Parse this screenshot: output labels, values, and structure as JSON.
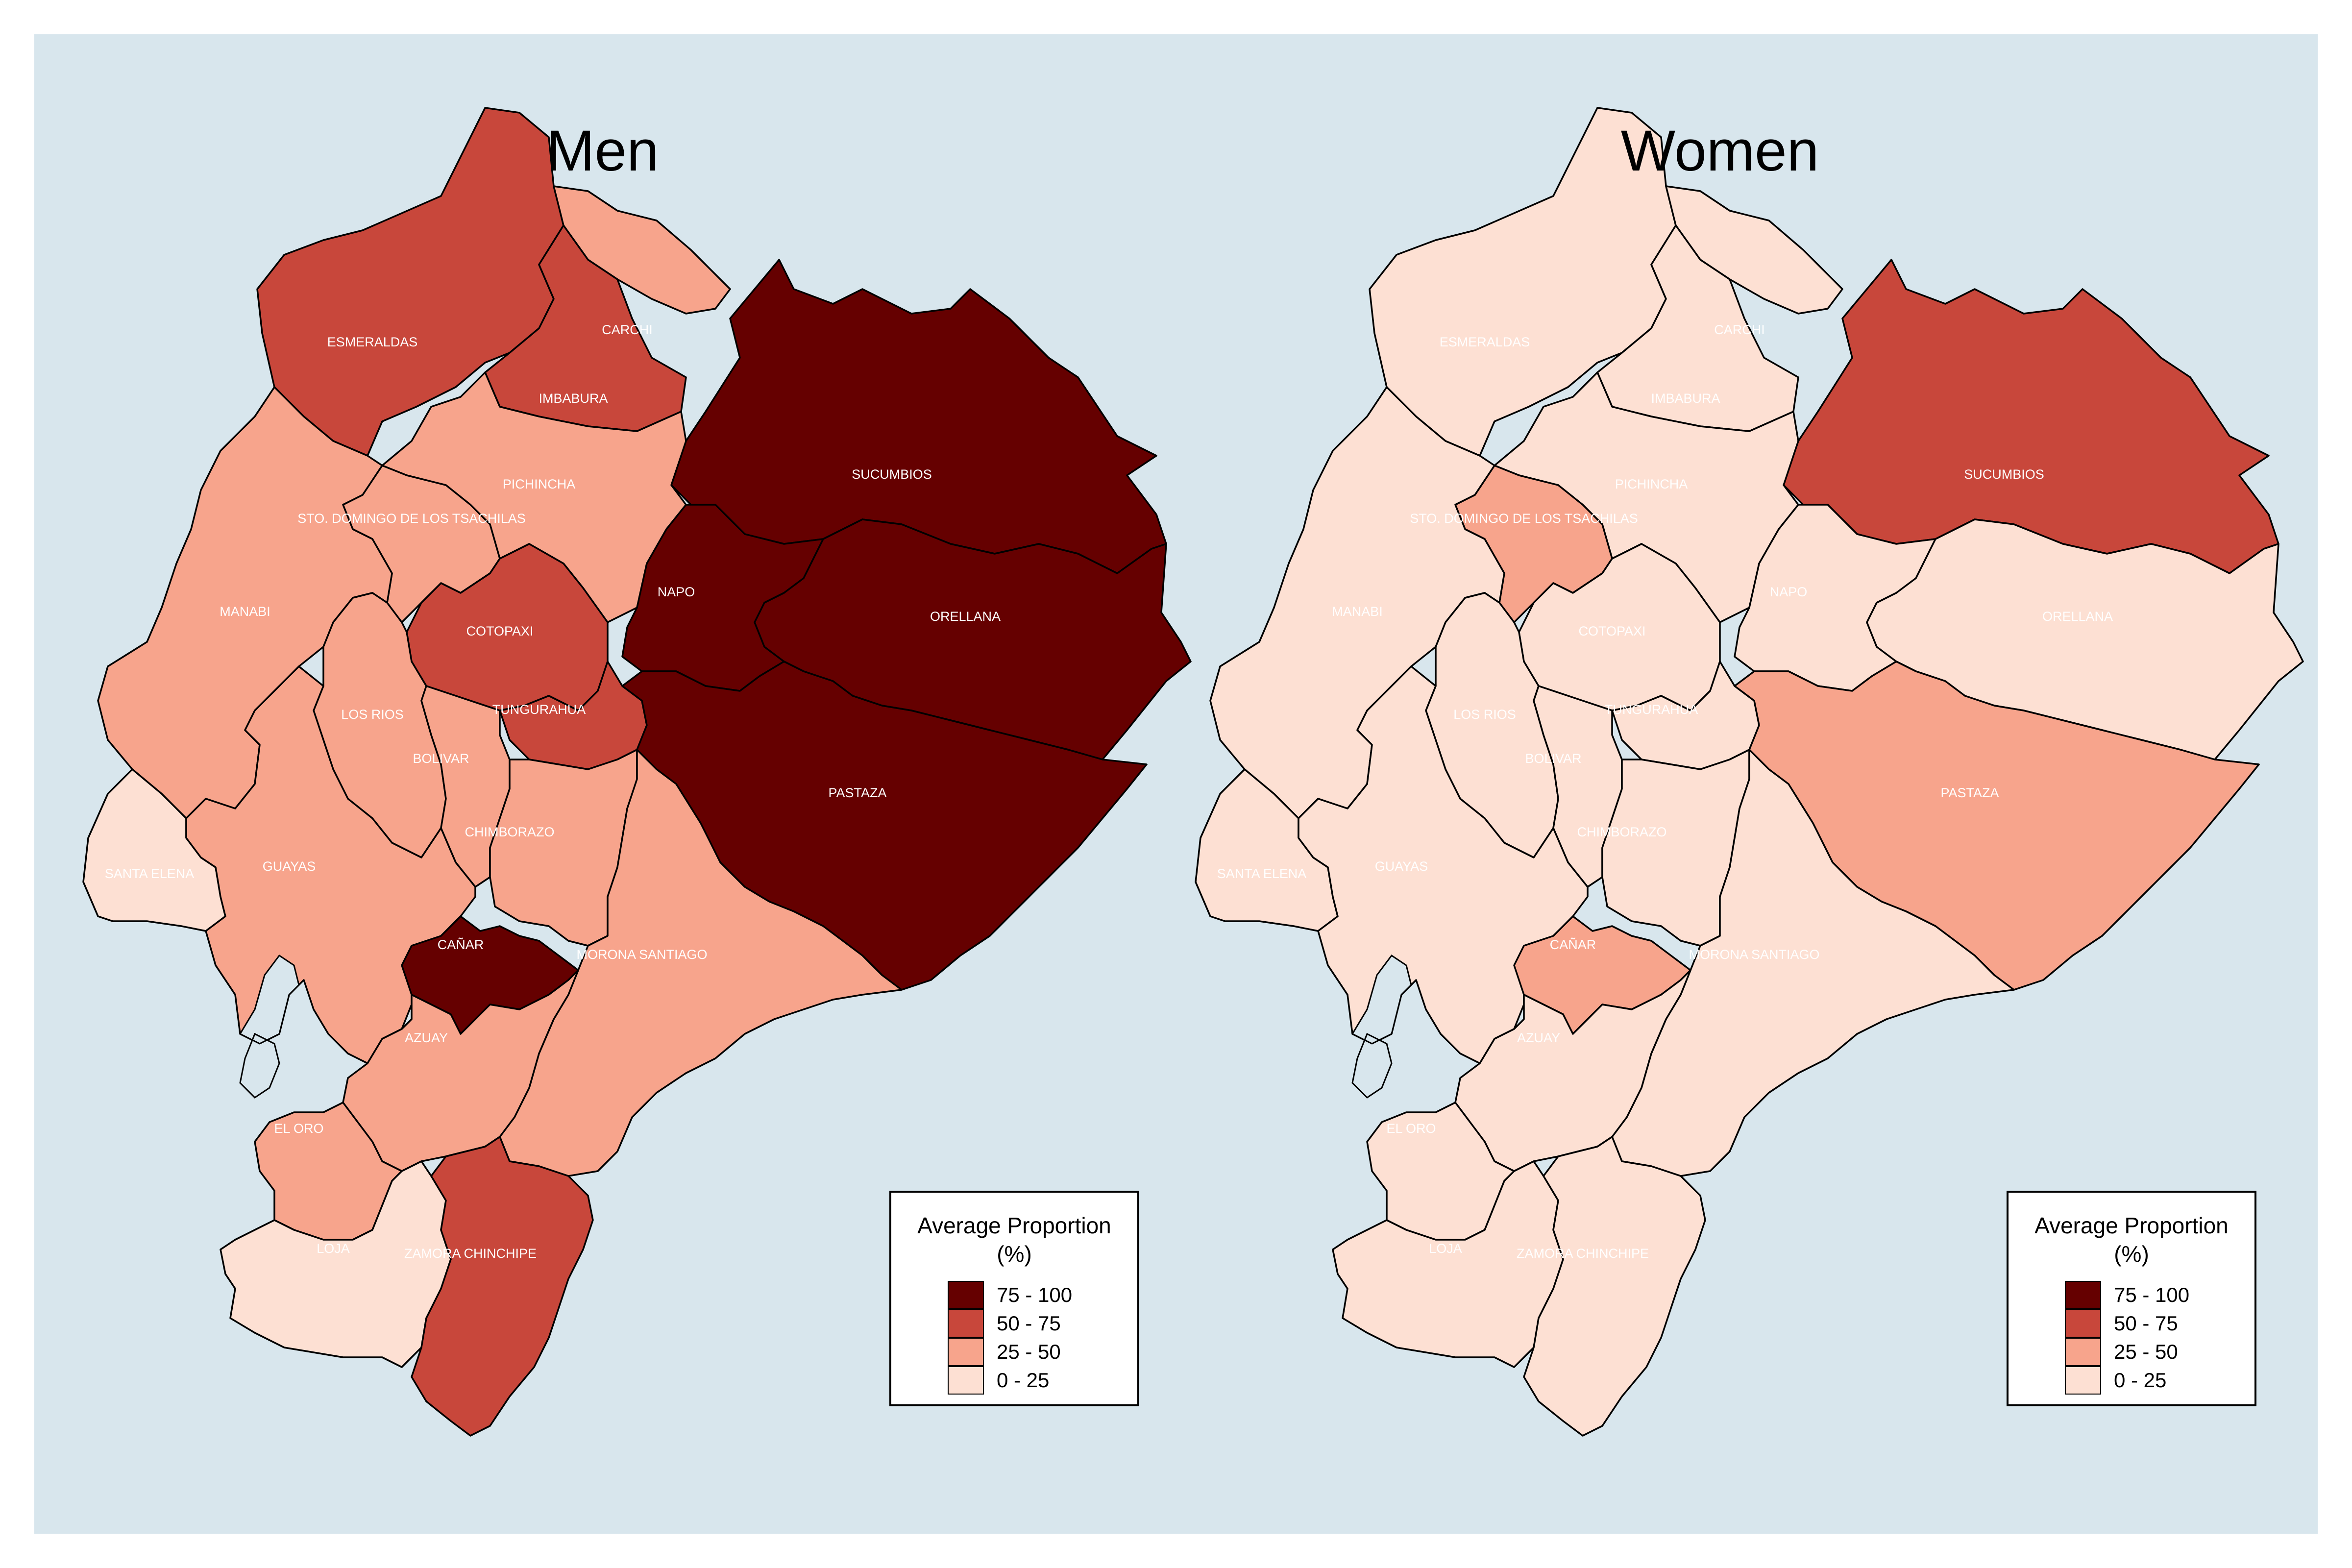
{
  "panels": [
    {
      "title": "Men",
      "provinces": [
        {
          "name": "ESMERALDAS",
          "class": "50 - 75"
        },
        {
          "name": "CARCHI",
          "class": "25 - 50"
        },
        {
          "name": "IMBABURA",
          "class": "50 - 75"
        },
        {
          "name": "SUCUMBIOS",
          "class": "75 - 100"
        },
        {
          "name": "PICHINCHA",
          "class": "25 - 50"
        },
        {
          "name": "STO. DOMINGO DE LOS TSACHILAS",
          "class": "25 - 50"
        },
        {
          "name": "MANABI",
          "class": "25 - 50"
        },
        {
          "name": "NAPO",
          "class": "75 - 100"
        },
        {
          "name": "ORELLANA",
          "class": "75 - 100"
        },
        {
          "name": "COTOPAXI",
          "class": "50 - 75"
        },
        {
          "name": "TUNGURAHUA",
          "class": "50 - 75"
        },
        {
          "name": "LOS RIOS",
          "class": "25 - 50"
        },
        {
          "name": "BOLIVAR",
          "class": "25 - 50"
        },
        {
          "name": "PASTAZA",
          "class": "75 - 100"
        },
        {
          "name": "CHIMBORAZO",
          "class": "25 - 50"
        },
        {
          "name": "SANTA ELENA",
          "class": "0 - 25"
        },
        {
          "name": "GUAYAS",
          "class": "25 - 50"
        },
        {
          "name": "CAÑAR",
          "class": "75 - 100"
        },
        {
          "name": "MORONA SANTIAGO",
          "class": "25 - 50"
        },
        {
          "name": "AZUAY",
          "class": "25 - 50"
        },
        {
          "name": "EL ORO",
          "class": "25 - 50"
        },
        {
          "name": "LOJA",
          "class": "0 - 25"
        },
        {
          "name": "ZAMORA CHINCHIPE",
          "class": "50 - 75"
        }
      ]
    },
    {
      "title": "Women",
      "provinces": [
        {
          "name": "ESMERALDAS",
          "class": "0 - 25"
        },
        {
          "name": "CARCHI",
          "class": "0 - 25"
        },
        {
          "name": "IMBABURA",
          "class": "0 - 25"
        },
        {
          "name": "SUCUMBIOS",
          "class": "50 - 75"
        },
        {
          "name": "PICHINCHA",
          "class": "0 - 25"
        },
        {
          "name": "STO. DOMINGO DE LOS TSACHILAS",
          "class": "25 - 50"
        },
        {
          "name": "MANABI",
          "class": "0 - 25"
        },
        {
          "name": "NAPO",
          "class": "0 - 25"
        },
        {
          "name": "ORELLANA",
          "class": "0 - 25"
        },
        {
          "name": "COTOPAXI",
          "class": "0 - 25"
        },
        {
          "name": "TUNGURAHUA",
          "class": "0 - 25"
        },
        {
          "name": "LOS RIOS",
          "class": "0 - 25"
        },
        {
          "name": "BOLIVAR",
          "class": "0 - 25"
        },
        {
          "name": "PASTAZA",
          "class": "25 - 50"
        },
        {
          "name": "CHIMBORAZO",
          "class": "0 - 25"
        },
        {
          "name": "SANTA ELENA",
          "class": "0 - 25"
        },
        {
          "name": "GUAYAS",
          "class": "0 - 25"
        },
        {
          "name": "CAÑAR",
          "class": "25 - 50"
        },
        {
          "name": "MORONA SANTIAGO",
          "class": "0 - 25"
        },
        {
          "name": "AZUAY",
          "class": "0 - 25"
        },
        {
          "name": "EL ORO",
          "class": "0 - 25"
        },
        {
          "name": "LOJA",
          "class": "0 - 25"
        },
        {
          "name": "ZAMORA CHINCHIPE",
          "class": "0 - 25"
        }
      ]
    }
  ],
  "legend": {
    "title": "Average Proportion",
    "subtitle": "(%)",
    "items": [
      {
        "label": "75 - 100",
        "color": "#650000"
      },
      {
        "label": "50 - 75",
        "color": "#c8473b"
      },
      {
        "label": "25 - 50",
        "color": "#f7a48c"
      },
      {
        "label": "0 - 25",
        "color": "#fde0d3"
      }
    ]
  },
  "colors": {
    "background": "#d8e6ed",
    "border": "#000000",
    "label_text": "#ffffff"
  }
}
